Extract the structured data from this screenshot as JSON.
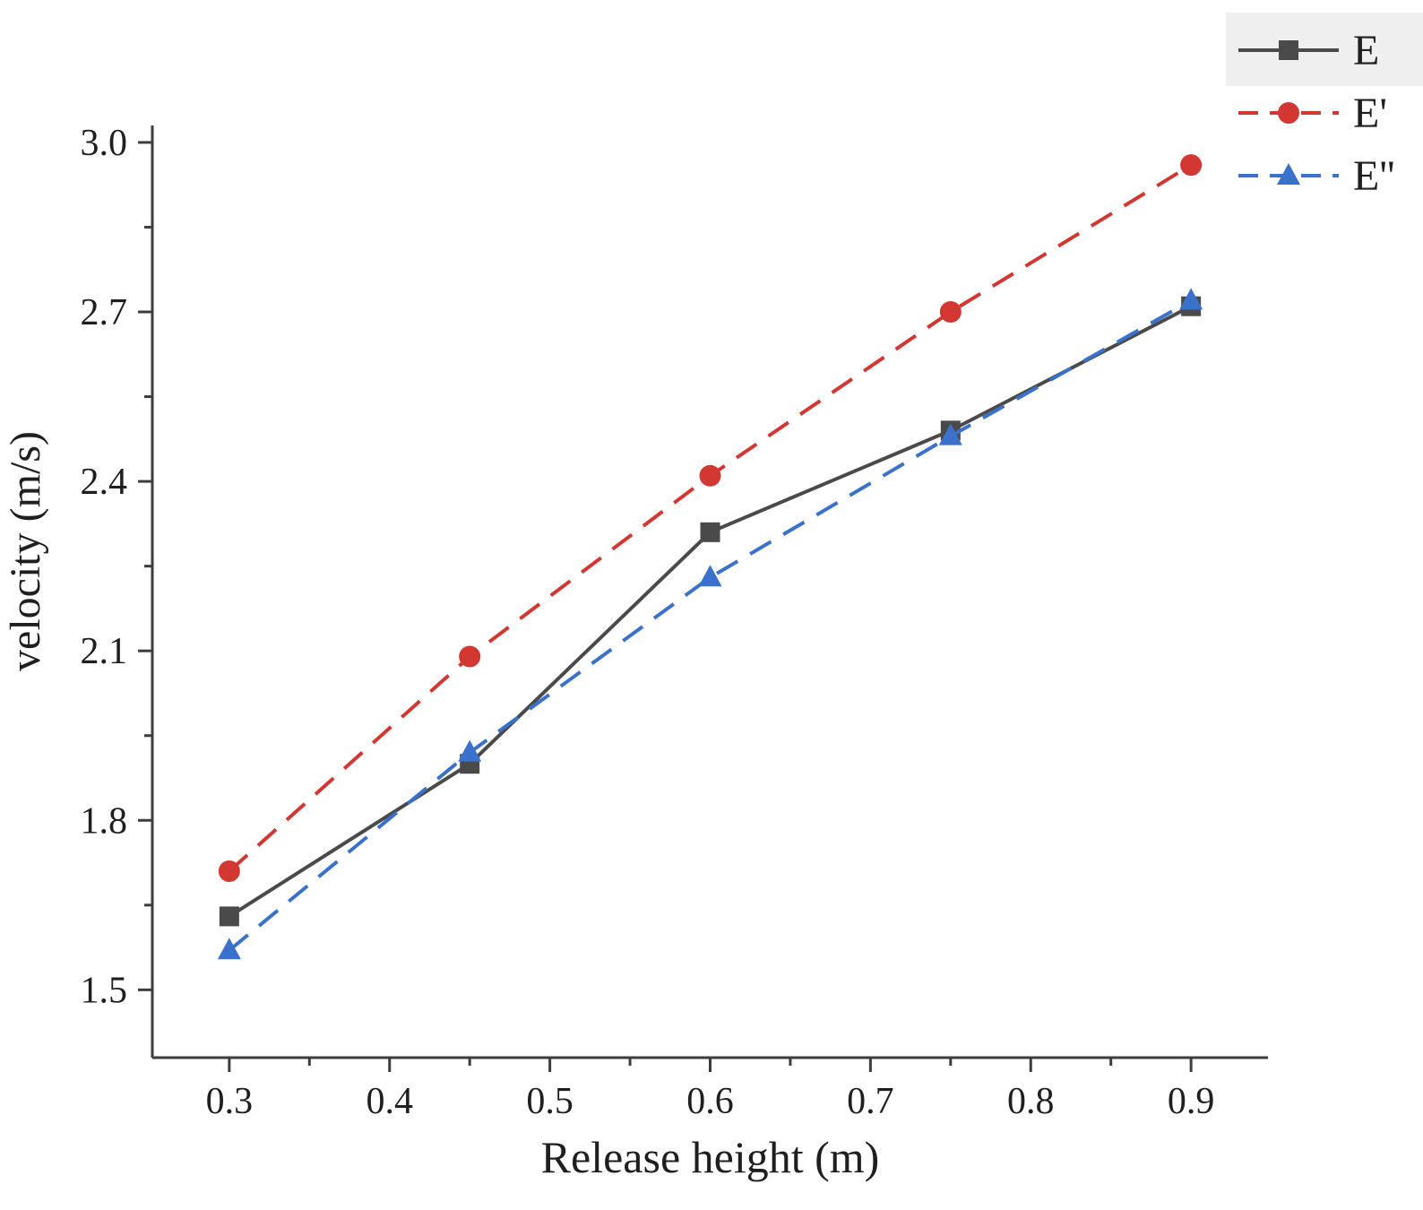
{
  "chart_data": {
    "type": "line",
    "title": "",
    "xlabel": "Release height (m)",
    "ylabel": "velocity (m/s)",
    "x": [
      0.3,
      0.45,
      0.6,
      0.75,
      0.9
    ],
    "xlim": [
      0.252,
      0.948
    ],
    "ylim": [
      1.38,
      3.03
    ],
    "x_ticks": [
      0.3,
      0.4,
      0.5,
      0.6,
      0.7,
      0.8,
      0.9
    ],
    "y_ticks": [
      1.5,
      1.8,
      2.1,
      2.4,
      2.7,
      3.0
    ],
    "grid": false,
    "legend_position": "top-right",
    "series": [
      {
        "name": "E",
        "color": "#4a4a4a",
        "marker": "square",
        "line_style": "solid",
        "values": [
          1.63,
          1.9,
          2.31,
          2.49,
          2.71
        ]
      },
      {
        "name": "E'",
        "color": "#d23731",
        "marker": "circle",
        "line_style": "dashed",
        "values": [
          1.71,
          2.09,
          2.41,
          2.7,
          2.96
        ]
      },
      {
        "name": "E''",
        "color": "#3a72cb",
        "marker": "triangle",
        "line_style": "dashed",
        "values": [
          1.57,
          1.92,
          2.23,
          2.48,
          2.72
        ]
      }
    ]
  }
}
